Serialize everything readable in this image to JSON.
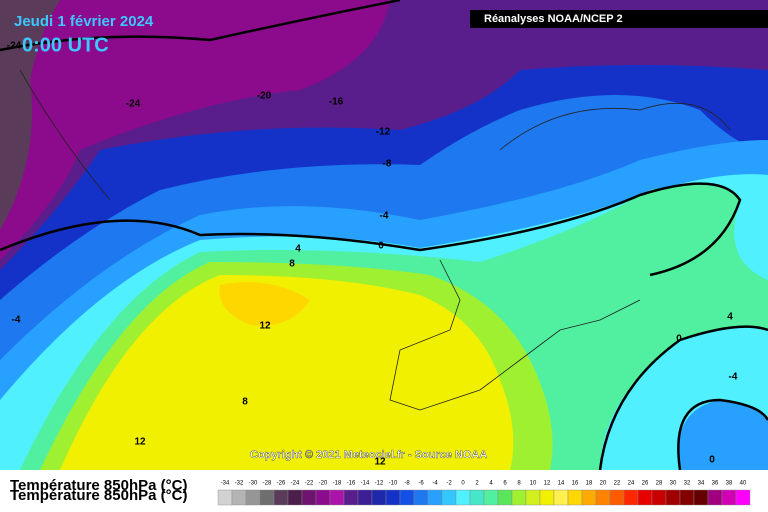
{
  "header": {
    "date": "Jeudi 1 février 2024",
    "time": "0:00 UTC",
    "source": "Réanalyses NOAA/NCEP 2"
  },
  "contour_labels": [
    "-24",
    "-24",
    "-20",
    "-16",
    "-12",
    "-8",
    "-4",
    "0",
    "4",
    "8",
    "12",
    "8",
    "12",
    "12",
    "-4",
    "4",
    "0",
    "-4",
    "0"
  ],
  "copyright": "Copyright © 2021 Meteociel.fr - Source NOAA",
  "legend": {
    "title": "Température 850hPa (°C)",
    "labels": [
      "-34",
      "-32",
      "-30",
      "-28",
      "-26",
      "-24",
      "-22",
      "-20",
      "-18",
      "-16",
      "-14",
      "-12",
      "-10",
      "-8",
      "-6",
      "-4",
      "-2",
      "0",
      "2",
      "4",
      "6",
      "8",
      "10",
      "12",
      "14",
      "16",
      "18",
      "20",
      "22",
      "24",
      "26",
      "28",
      "30",
      "32",
      "34",
      "36",
      "38",
      "40"
    ],
    "colors": [
      "#d2d2d2",
      "#b4b4b4",
      "#969696",
      "#6e6e6e",
      "#5a3c5a",
      "#4b1e4b",
      "#6e146e",
      "#8c0a8c",
      "#aa14aa",
      "#5a1e8c",
      "#3c1e96",
      "#1e28aa",
      "#1432c8",
      "#1450e6",
      "#1e78f0",
      "#28a0ff",
      "#32c8ff",
      "#50f0ff",
      "#46e6c8",
      "#50f0a0",
      "#5ae65a",
      "#a0f032",
      "#d2f01e",
      "#f0f000",
      "#fff050",
      "#ffd700",
      "#ffaa00",
      "#ff8200",
      "#ff5a00",
      "#ff2800",
      "#e60000",
      "#c80000",
      "#a00000",
      "#820000",
      "#640000",
      "#a0007d",
      "#d200b4",
      "#ff00ff"
    ]
  }
}
